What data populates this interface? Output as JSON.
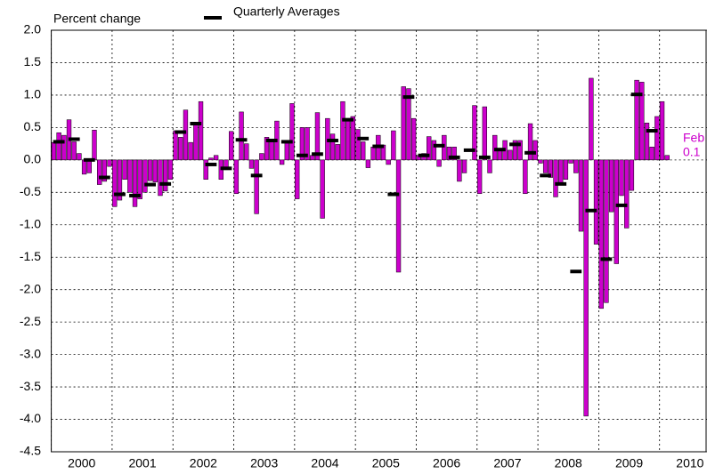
{
  "chart_data": {
    "type": "bar",
    "ylabel": "Percent change",
    "ylim": [
      -4.5,
      2.0
    ],
    "yticks": [
      {
        "value": 2.0,
        "label": "2.0"
      },
      {
        "value": 1.5,
        "label": "1.5"
      },
      {
        "value": 1.0,
        "label": "1.0"
      },
      {
        "value": 0.5,
        "label": "0.5"
      },
      {
        "value": 0.0,
        "label": "0.0"
      },
      {
        "value": -0.5,
        "label": "-0.5"
      },
      {
        "value": -1.0,
        "label": "-1.0"
      },
      {
        "value": -1.5,
        "label": "-1.5"
      },
      {
        "value": -2.0,
        "label": "-2.0"
      },
      {
        "value": -2.5,
        "label": "-2.5"
      },
      {
        "value": -3.0,
        "label": "-3.0"
      },
      {
        "value": -3.5,
        "label": "-3.5"
      },
      {
        "value": -4.0,
        "label": "-4.0"
      },
      {
        "value": -4.5,
        "label": "-4.5"
      }
    ],
    "xlim": [
      2000,
      2010.78
    ],
    "xticks": [
      2000,
      2001,
      2002,
      2003,
      2004,
      2005,
      2006,
      2007,
      2008,
      2009,
      2010
    ],
    "grid": true,
    "series": [
      {
        "color": "#cc00cc",
        "values": [
          0.27,
          0.42,
          0.38,
          0.62,
          0.28,
          0.1,
          -0.22,
          -0.2,
          0.46,
          -0.38,
          -0.33,
          -0.1,
          -0.72,
          -0.62,
          -0.3,
          -0.5,
          -0.72,
          -0.6,
          -0.5,
          -0.32,
          -0.34,
          -0.55,
          -0.48,
          -0.3,
          0.45,
          0.35,
          0.77,
          0.27,
          0.57,
          0.9,
          -0.3,
          0.03,
          0.07,
          -0.3,
          -0.15,
          0.44,
          -0.52,
          0.74,
          0.25,
          -0.13,
          -0.83,
          0.1,
          0.35,
          0.3,
          0.6,
          -0.07,
          0.3,
          0.87,
          -0.6,
          0.5,
          0.5,
          0.07,
          0.73,
          -0.9,
          0.64,
          0.4,
          0.24,
          0.9,
          0.6,
          0.67,
          0.47,
          0.28,
          -0.12,
          0.2,
          0.38,
          0.23,
          -0.07,
          0.45,
          -1.73,
          1.13,
          1.1,
          0.64,
          0.07,
          0.1,
          0.36,
          0.3,
          -0.1,
          0.38,
          0.2,
          0.2,
          -0.33,
          -0.2,
          0.0,
          0.84,
          -0.52,
          0.82,
          -0.2,
          0.38,
          0.15,
          0.3,
          0.15,
          0.3,
          0.3,
          -0.52,
          0.56,
          0.3,
          -0.05,
          -0.2,
          -0.27,
          -0.57,
          -0.35,
          -0.3,
          -0.05,
          -0.2,
          -1.1,
          -3.95,
          1.26,
          -1.3,
          -2.29,
          -2.2,
          -0.8,
          -1.6,
          -0.55,
          -1.05,
          -0.47,
          1.23,
          1.2,
          0.57,
          0.2,
          0.67,
          0.9,
          0.07
        ]
      },
      {
        "name": "Quarterly Averages",
        "color": "#000000",
        "values": [
          0.28,
          0.32,
          0.0,
          -0.27,
          -0.53,
          -0.55,
          -0.38,
          -0.37,
          0.43,
          0.56,
          -0.07,
          -0.13,
          0.31,
          -0.24,
          0.3,
          0.28,
          0.07,
          0.09,
          0.3,
          0.62,
          0.33,
          0.21,
          -0.53,
          0.97,
          0.07,
          0.22,
          0.04,
          0.15,
          0.04,
          0.16,
          0.24,
          0.11,
          -0.24,
          -0.37,
          -1.72,
          -0.78,
          -1.53,
          -0.7,
          1.01,
          0.45
        ]
      }
    ],
    "annotations": [
      {
        "text": "Feb",
        "color": "#cc00cc"
      },
      {
        "text": "0.1",
        "color": "#cc00cc"
      }
    ]
  }
}
